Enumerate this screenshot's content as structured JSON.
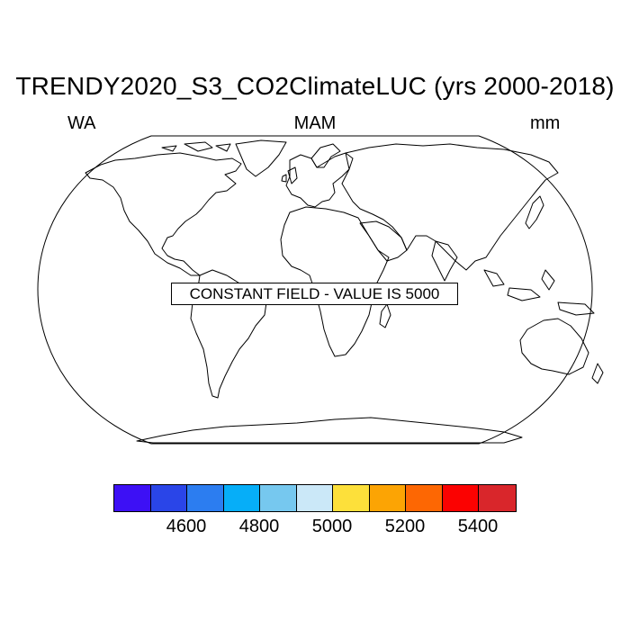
{
  "title": "TRENDY2020_S3_CO2ClimateLUC (yrs 2000-2018)",
  "left_label": "WA",
  "center_label": "MAM",
  "right_label": "mm",
  "notice": "CONSTANT FIELD - VALUE IS 5000",
  "colorbar": {
    "colors": [
      "#3d10f5",
      "#2a45e8",
      "#2c7df0",
      "#06aef8",
      "#76c8ef",
      "#cbe8f8",
      "#fde03a",
      "#fca404",
      "#fd6703",
      "#fb0201",
      "#d9262b"
    ],
    "ticks": [
      "4600",
      "4800",
      "5000",
      "5200",
      "5400"
    ]
  }
}
